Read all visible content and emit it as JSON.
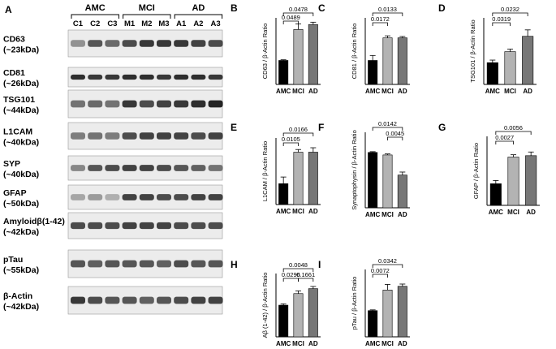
{
  "figure": {
    "panel_a_letter": "A",
    "groups": [
      {
        "label": "AMC",
        "lanes": [
          "C1",
          "C2",
          "C3"
        ]
      },
      {
        "label": "MCI",
        "lanes": [
          "M1",
          "M2",
          "M3"
        ]
      },
      {
        "label": "AD",
        "lanes": [
          "A1",
          "A2",
          "A3"
        ]
      }
    ],
    "blots": [
      {
        "name": "CD63",
        "size": "(~23kDa)"
      },
      {
        "name": "CD81",
        "size": "(~26kDa)"
      },
      {
        "name": "TSG101",
        "size": "(~44kDa)"
      },
      {
        "name": "L1CAM",
        "size": "(~40kDa)"
      },
      {
        "name": "SYP",
        "size": "(~40kDa)"
      },
      {
        "name": "GFAP",
        "size": "(~50kDa)"
      },
      {
        "name": "Amyloidβ(1-42)",
        "size": "(~42kDa)"
      },
      {
        "name": "pTau",
        "size": "(~55kDa)"
      },
      {
        "name": "β-Actin",
        "size": "(~42kDa)"
      }
    ]
  },
  "chart_data": [
    {
      "panel": "B",
      "type": "bar",
      "categories": [
        "AMC",
        "MCI",
        "AD"
      ],
      "values": [
        0.72,
        1.65,
        1.8
      ],
      "errors": [
        0.02,
        0.17,
        0.07
      ],
      "ylabel": "CD63 / β-Actin Ratio",
      "ylim": [
        0,
        2
      ],
      "colors": [
        "#000000",
        "#b3b3b3",
        "#777777"
      ],
      "brackets": [
        {
          "from": 0,
          "to": 1,
          "label": "0.0489"
        },
        {
          "from": 0,
          "to": 2,
          "label": "0.0478"
        }
      ]
    },
    {
      "panel": "C",
      "type": "bar",
      "categories": [
        "AMC",
        "MCI",
        "AD"
      ],
      "values": [
        0.72,
        1.4,
        1.4
      ],
      "errors": [
        0.15,
        0.06,
        0.04
      ],
      "ylabel": "CD81 / β-Actin Ratio",
      "ylim": [
        0,
        2
      ],
      "colors": [
        "#000000",
        "#b3b3b3",
        "#777777"
      ],
      "brackets": [
        {
          "from": 0,
          "to": 1,
          "label": "0.0172"
        },
        {
          "from": 0,
          "to": 2,
          "label": "0.0133"
        }
      ]
    },
    {
      "panel": "D",
      "type": "bar",
      "categories": [
        "AMC",
        "MCI",
        "AD"
      ],
      "values": [
        0.85,
        1.28,
        1.88
      ],
      "errors": [
        0.1,
        0.1,
        0.25
      ],
      "ylabel": "TSG101 / β-Actin Ratio",
      "ylim": [
        0,
        2.6
      ],
      "colors": [
        "#000000",
        "#b3b3b3",
        "#777777"
      ],
      "brackets": [
        {
          "from": 0,
          "to": 1,
          "label": "0.0319"
        },
        {
          "from": 0,
          "to": 2,
          "label": "0.0232"
        }
      ]
    },
    {
      "panel": "E",
      "type": "bar",
      "categories": [
        "AMC",
        "MCI",
        "AD"
      ],
      "values": [
        0.47,
        1.18,
        1.18
      ],
      "errors": [
        0.15,
        0.06,
        0.1
      ],
      "ylabel": "L1CAM / β-Actin Ratio",
      "ylim": [
        0,
        1.5
      ],
      "colors": [
        "#000000",
        "#b3b3b3",
        "#777777"
      ],
      "brackets": [
        {
          "from": 0,
          "to": 1,
          "label": "0.0105"
        },
        {
          "from": 0,
          "to": 2,
          "label": "0.0166"
        }
      ]
    },
    {
      "panel": "F",
      "type": "bar",
      "categories": [
        "AMC",
        "MCI",
        "AD"
      ],
      "values": [
        2.2,
        2.1,
        1.3
      ],
      "errors": [
        0.03,
        0.04,
        0.12
      ],
      "ylabel": "Synaptophysin / β-Actin Ratio",
      "ylim": [
        0,
        3
      ],
      "colors": [
        "#000000",
        "#b3b3b3",
        "#777777"
      ],
      "brackets": [
        {
          "from": 1,
          "to": 2,
          "label": "0.0045"
        },
        {
          "from": 0,
          "to": 2,
          "label": "0.0142"
        }
      ]
    },
    {
      "panel": "G",
      "type": "bar",
      "categories": [
        "AMC",
        "MCI",
        "AD"
      ],
      "values": [
        0.47,
        1.05,
        1.08
      ],
      "errors": [
        0.07,
        0.05,
        0.08
      ],
      "ylabel": "GFAP / β-Actin Ratio",
      "ylim": [
        0,
        1.5
      ],
      "colors": [
        "#000000",
        "#b3b3b3",
        "#777777"
      ],
      "brackets": [
        {
          "from": 0,
          "to": 1,
          "label": "0.0027"
        },
        {
          "from": 0,
          "to": 2,
          "label": "0.0056"
        }
      ]
    },
    {
      "panel": "H",
      "type": "bar",
      "categories": [
        "AMC",
        "MCI",
        "AD"
      ],
      "values": [
        1.15,
        1.57,
        1.75
      ],
      "errors": [
        0.05,
        0.1,
        0.08
      ],
      "ylabel": "Aβ (1-42) / β-Actin Ratio",
      "ylim": [
        0,
        2.3
      ],
      "colors": [
        "#000000",
        "#b3b3b3",
        "#777777"
      ],
      "brackets": [
        {
          "from": 0,
          "to": 1,
          "label": "0.0296"
        },
        {
          "from": 1,
          "to": 2,
          "label": "0.1661"
        },
        {
          "from": 0,
          "to": 2,
          "label": "0.0048"
        }
      ]
    },
    {
      "panel": "I",
      "type": "bar",
      "categories": [
        "AMC",
        "MCI",
        "AD"
      ],
      "values": [
        0.7,
        1.25,
        1.35
      ],
      "errors": [
        0.02,
        0.15,
        0.06
      ],
      "ylabel": "pTau / β-Actin Ratio",
      "ylim": [
        0,
        1.8
      ],
      "colors": [
        "#000000",
        "#b3b3b3",
        "#777777"
      ],
      "brackets": [
        {
          "from": 0,
          "to": 1,
          "label": "0.0072"
        },
        {
          "from": 0,
          "to": 2,
          "label": "0.0342"
        }
      ]
    }
  ]
}
